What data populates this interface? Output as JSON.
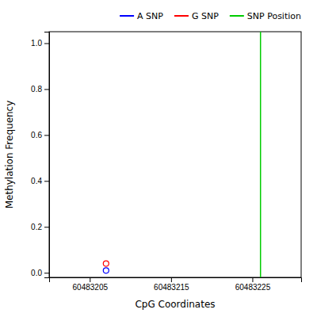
{
  "chart_data": {
    "type": "scatter",
    "xlabel": "CpG Coordinates",
    "ylabel": "Methylation Frequency",
    "xlim": [
      60483200,
      60483231
    ],
    "ylim": [
      -0.02,
      1.05
    ],
    "xticks": [
      60483205,
      60483215,
      60483225
    ],
    "yticks": [
      {
        "value": 0.0,
        "label": "0.0"
      },
      0.2,
      0.4,
      0.6,
      0.8,
      {
        "value": 1.0,
        "label": "1.0"
      }
    ],
    "grid": false,
    "legend": "upper right",
    "series": [
      {
        "name": "A SNP",
        "color": "blue",
        "marker": "open-circle",
        "x": [
          60483207
        ],
        "values": [
          0.01
        ]
      },
      {
        "name": "G SNP",
        "color": "red",
        "marker": "open-circle",
        "x": [
          60483207
        ],
        "values": [
          0.04
        ]
      },
      {
        "name": "SNP Position",
        "type": "vline",
        "color": "#00CC00",
        "x": [
          60483226
        ]
      }
    ]
  }
}
